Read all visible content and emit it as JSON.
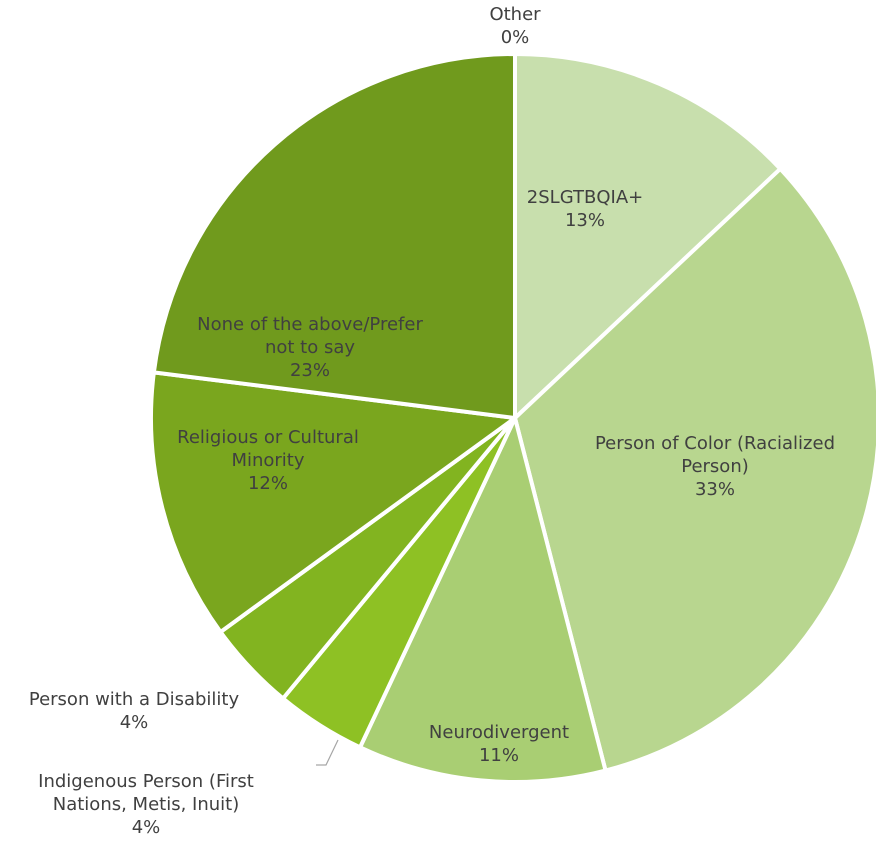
{
  "chart_data": {
    "type": "pie",
    "title": "",
    "slices": [
      {
        "category": "2SLGTBQIA+",
        "value": 13,
        "value_label": "13%",
        "color": "#c8dfad",
        "label_lines": [
          "2SLGTBQIA+"
        ]
      },
      {
        "category": "Person of Color (Racialized Person)",
        "value": 33,
        "value_label": "33%",
        "color": "#b8d68f",
        "label_lines": [
          "Person of Color (Racialized",
          "Person)"
        ]
      },
      {
        "category": "Neurodivergent",
        "value": 11,
        "value_label": "11%",
        "color": "#a9ce73",
        "label_lines": [
          "Neurodivergent"
        ]
      },
      {
        "category": "Indigenous Person (First Nations, Metis, Inuit)",
        "value": 4,
        "value_label": "4%",
        "color": "#8ec124",
        "label_lines": [
          "Indigenous Person (First",
          "Nations, Metis, Inuit)"
        ]
      },
      {
        "category": "Person with a Disability",
        "value": 4,
        "value_label": "4%",
        "color": "#82b420",
        "label_lines": [
          "Person with a Disability"
        ]
      },
      {
        "category": "Religious or Cultural Minority",
        "value": 12,
        "value_label": "12%",
        "color": "#7aa61e",
        "label_lines": [
          "Religious or Cultural",
          "Minority"
        ]
      },
      {
        "category": "None of the above/Prefer not to say",
        "value": 23,
        "value_label": "23%",
        "color": "#709a1d",
        "label_lines": [
          "None of the above/Prefer",
          "not to say"
        ]
      },
      {
        "category": "Other",
        "value": 0,
        "value_label": "0%",
        "color": "#6a921b",
        "label_lines": [
          "Other"
        ]
      }
    ]
  }
}
